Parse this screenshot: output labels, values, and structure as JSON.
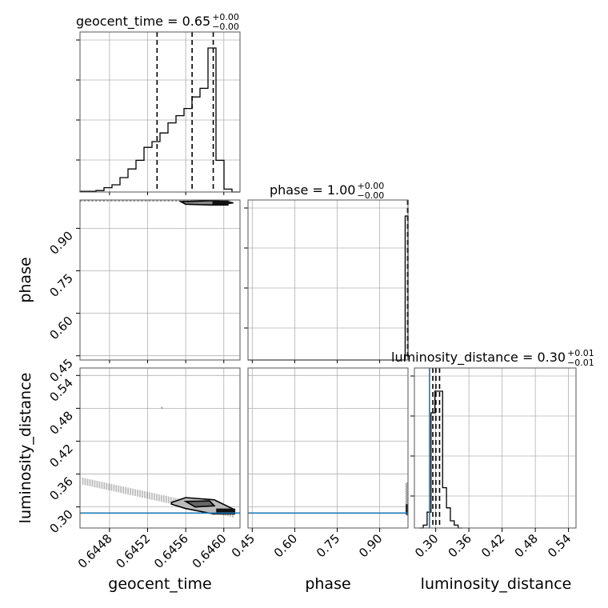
{
  "chart_data": {
    "type": "corner",
    "grid": true,
    "truth_color": "#1f77b4",
    "parameters": [
      "geocent_time",
      "phase",
      "luminosity_distance"
    ],
    "axis_labels": {
      "geocent_time": "geocent_time",
      "phase": "phase",
      "luminosity_distance": "luminosity_distance"
    },
    "ranges": {
      "geocent_time": [
        0.64449,
        0.64617
      ],
      "phase": [
        0.435,
        1.0
      ],
      "luminosity_distance": [
        0.2615,
        0.5536
      ]
    },
    "ticks": {
      "geocent_time": [
        0.6448,
        0.6452,
        0.6456,
        0.646
      ],
      "phase": [
        0.45,
        0.6,
        0.75,
        0.9
      ],
      "luminosity_distance": [
        0.3,
        0.36,
        0.42,
        0.48,
        0.54
      ]
    },
    "tick_labels": {
      "geocent_time": [
        "0.6448",
        "0.6452",
        "0.6456",
        "0.6460"
      ],
      "phase": [
        "0.45",
        "0.60",
        "0.75",
        "0.90"
      ],
      "luminosity_distance": [
        "0.30",
        "0.36",
        "0.42",
        "0.48",
        "0.54"
      ]
    },
    "truths": {
      "luminosity_distance": 0.2888
    },
    "titles": [
      {
        "param": "geocent_time",
        "main": "geocent_time = 0.65",
        "plus": "+0.00",
        "minus": "−0.00"
      },
      {
        "param": "phase",
        "main": "phase = 1.00",
        "plus": "+0.00",
        "minus": "−0.00"
      },
      {
        "param": "luminosity_distance",
        "main": "luminosity_distance = 0.30",
        "plus": "+0.01",
        "minus": "−0.01"
      }
    ],
    "histograms": {
      "geocent_time": {
        "bin_edges": [
          0.64449,
          0.644574,
          0.644658,
          0.644742,
          0.644826,
          0.64491,
          0.644994,
          0.645078,
          0.645162,
          0.645246,
          0.64533,
          0.645414,
          0.645498,
          0.645582,
          0.645666,
          0.64575,
          0.645834,
          0.645918,
          0.646002,
          0.646086,
          0.64617
        ],
        "counts": [
          0.005,
          0.005,
          0.01,
          0.03,
          0.05,
          0.1,
          0.16,
          0.22,
          0.31,
          0.35,
          0.41,
          0.48,
          0.53,
          0.58,
          0.66,
          0.72,
          1.0,
          0.22,
          0.02,
          0.0
        ],
        "quantiles": [
          0.645299,
          0.645667,
          0.645889
        ]
      },
      "phase": {
        "bin_edges": [
          0.435,
          0.99,
          1.0
        ],
        "counts": [
          0.0,
          1.0
        ],
        "quantiles": [
          0.9985,
          0.9992,
          0.9998
        ]
      },
      "luminosity_distance": {
        "bin_edges": [
          0.2705,
          0.2775,
          0.2845,
          0.2915,
          0.2985,
          0.3055,
          0.3125,
          0.3195,
          0.3265,
          0.3335,
          0.3405,
          0.3475
        ],
        "counts": [
          0.0,
          0.02,
          0.11,
          0.8,
          0.95,
          0.95,
          0.28,
          0.14,
          0.05,
          0.02,
          0.0
        ],
        "quantiles": [
          0.2948,
          0.3004,
          0.307
        ]
      }
    }
  }
}
